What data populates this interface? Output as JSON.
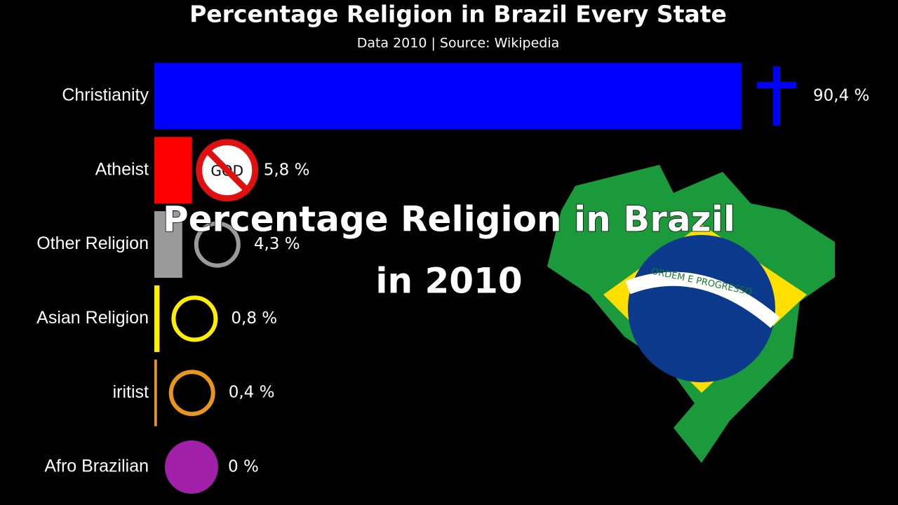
{
  "chart_data": {
    "type": "hbar",
    "title": "Percentage Religion in Brazil Every State",
    "subtitle": "Data 2010 | Source: Wikipedia",
    "categories": [
      "Christianity",
      "Atheist",
      "Other Religion",
      "Asian Religion",
      "iritist",
      "Afro Brazilian"
    ],
    "values": [
      90.4,
      5.8,
      4.3,
      0.8,
      0.4,
      0
    ],
    "value_labels": [
      "90,4 %",
      "5,8 %",
      "4,3 %",
      "0,8 %",
      "0,4 %",
      "0 %"
    ],
    "colors": [
      "#0000ff",
      "#ff0000",
      "#9a9a9a",
      "#ffee00",
      "#e8961e",
      "#a020a8"
    ],
    "annotations": [
      "Percentage Religion in Brazil",
      "in 2010",
      "ORDEM E PROGRESSO",
      "GOD"
    ]
  }
}
